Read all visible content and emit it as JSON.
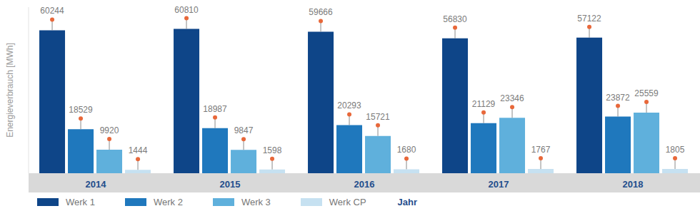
{
  "chart_data": {
    "type": "bar",
    "y_label": "Energieverbrauch [MWh]",
    "x_label": "Jahr",
    "categories": [
      "2014",
      "2015",
      "2016",
      "2017",
      "2018"
    ],
    "series": [
      {
        "name": "Werk 1",
        "color": "#0e4588",
        "values": [
          60244,
          60810,
          59666,
          56830,
          57122
        ]
      },
      {
        "name": "Werk 2",
        "color": "#1f78bd",
        "values": [
          18529,
          18987,
          20293,
          21129,
          23872
        ]
      },
      {
        "name": "Werk 3",
        "color": "#5fb0dc",
        "values": [
          9920,
          9847,
          15721,
          23346,
          25559
        ]
      },
      {
        "name": "Werk CP",
        "color": "#c6e1f1",
        "values": [
          1444,
          1598,
          1680,
          1767,
          1805
        ]
      }
    ],
    "ylim": [
      0,
      70000
    ],
    "yticks": [
      0,
      10000,
      20000,
      30000,
      40000,
      50000,
      60000,
      70000
    ],
    "grid": false,
    "tick_labels": "x",
    "data_labels": true,
    "legend": "bottom"
  }
}
